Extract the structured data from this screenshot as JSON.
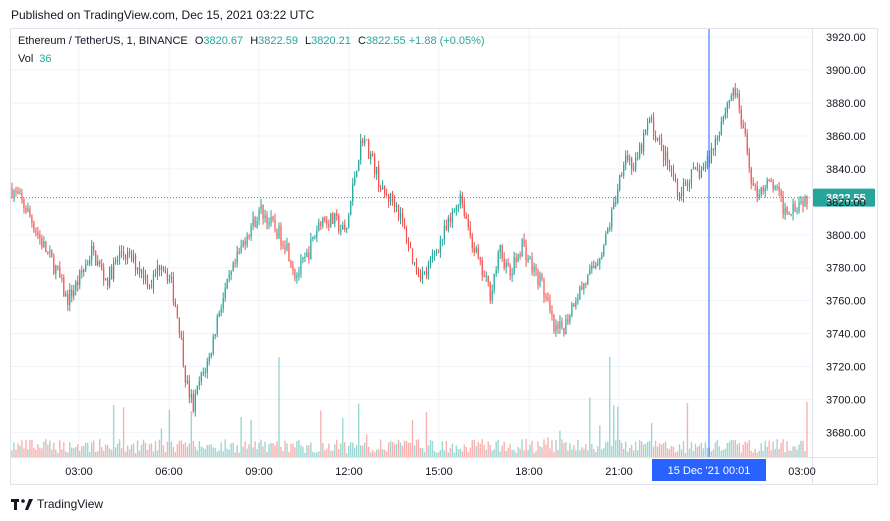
{
  "header": {
    "published": "Published on TradingView.com, Dec 15, 2021 03:22 UTC"
  },
  "legend": {
    "symbol": "Ethereum / TetherUS, 1, BINANCE",
    "open_label": "O",
    "open": "3820.67",
    "high_label": "H",
    "high": "3822.59",
    "low_label": "L",
    "low": "3820.21",
    "close_label": "C",
    "close": "3822.55",
    "change": "+1.88 (+0.05%)",
    "vol_label": "Vol",
    "vol": "36"
  },
  "footer": {
    "brand": "TradingView",
    "logo_icon": "tradingview-logo-icon"
  },
  "colors": {
    "up": "#26a69a",
    "down": "#ef5350",
    "crosshair": "#2962ff",
    "price_line": "#26a69a"
  },
  "chart_data": {
    "type": "candlestick",
    "ylim": [
      3665,
      3925
    ],
    "y_ticks": [
      "3920.00",
      "3900.00",
      "3880.00",
      "3860.00",
      "3840.00",
      "3820.00",
      "3800.00",
      "3780.00",
      "3760.00",
      "3740.00",
      "3720.00",
      "3700.00",
      "3680.00"
    ],
    "x_ticks": [
      "03:00",
      "06:00",
      "09:00",
      "12:00",
      "15:00",
      "18:00",
      "21:00",
      "03:00"
    ],
    "last_price": "3822.55",
    "crosshair_label": "15 Dec '21   00:01",
    "path": [
      [
        0,
        3828
      ],
      [
        15,
        3815
      ],
      [
        30,
        3795
      ],
      [
        45,
        3778
      ],
      [
        55,
        3760
      ],
      [
        65,
        3770
      ],
      [
        80,
        3790
      ],
      [
        95,
        3772
      ],
      [
        110,
        3790
      ],
      [
        125,
        3782
      ],
      [
        140,
        3770
      ],
      [
        150,
        3785
      ],
      [
        160,
        3770
      ],
      [
        168,
        3745
      ],
      [
        175,
        3710
      ],
      [
        182,
        3695
      ],
      [
        188,
        3710
      ],
      [
        198,
        3725
      ],
      [
        208,
        3755
      ],
      [
        220,
        3775
      ],
      [
        235,
        3800
      ],
      [
        250,
        3815
      ],
      [
        262,
        3805
      ],
      [
        275,
        3795
      ],
      [
        285,
        3775
      ],
      [
        295,
        3785
      ],
      [
        310,
        3810
      ],
      [
        325,
        3808
      ],
      [
        335,
        3800
      ],
      [
        345,
        3840
      ],
      [
        352,
        3860
      ],
      [
        362,
        3845
      ],
      [
        372,
        3825
      ],
      [
        385,
        3820
      ],
      [
        395,
        3800
      ],
      [
        405,
        3780
      ],
      [
        415,
        3775
      ],
      [
        425,
        3790
      ],
      [
        440,
        3808
      ],
      [
        450,
        3825
      ],
      [
        460,
        3800
      ],
      [
        470,
        3780
      ],
      [
        480,
        3765
      ],
      [
        490,
        3790
      ],
      [
        500,
        3775
      ],
      [
        512,
        3795
      ],
      [
        522,
        3780
      ],
      [
        532,
        3770
      ],
      [
        545,
        3740
      ],
      [
        555,
        3745
      ],
      [
        565,
        3762
      ],
      [
        580,
        3775
      ],
      [
        595,
        3795
      ],
      [
        605,
        3820
      ],
      [
        615,
        3850
      ],
      [
        625,
        3840
      ],
      [
        640,
        3870
      ],
      [
        650,
        3855
      ],
      [
        660,
        3840
      ],
      [
        670,
        3825
      ],
      [
        680,
        3835
      ],
      [
        695,
        3840
      ],
      [
        705,
        3855
      ],
      [
        715,
        3875
      ],
      [
        725,
        3890
      ],
      [
        735,
        3860
      ],
      [
        745,
        3825
      ],
      [
        755,
        3830
      ],
      [
        765,
        3830
      ],
      [
        775,
        3815
      ],
      [
        785,
        3818
      ],
      [
        795,
        3822
      ],
      [
        800,
        3822
      ]
    ]
  }
}
